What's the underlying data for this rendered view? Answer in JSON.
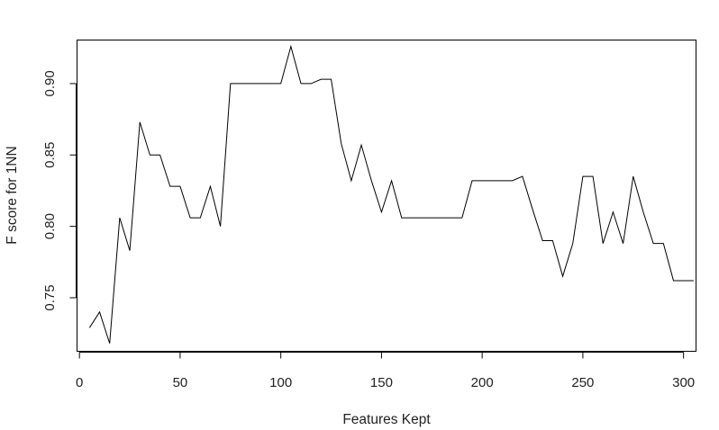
{
  "chart_data": {
    "type": "line",
    "title": "",
    "xlabel": "Features Kept",
    "ylabel": "F score for 1NN",
    "xlim": [
      -1.2,
      306.2
    ],
    "ylim": [
      0.7125,
      0.9305
    ],
    "xticks": [
      0,
      50,
      100,
      150,
      200,
      250,
      300
    ],
    "yticks": [
      0.75,
      0.8,
      0.85,
      0.9
    ],
    "xtick_labels": [
      "0",
      "50",
      "100",
      "150",
      "200",
      "250",
      "300"
    ],
    "ytick_labels": [
      "0.75",
      "0.80",
      "0.85",
      "0.90"
    ],
    "grid": false,
    "line_color": "#000000",
    "series": [
      {
        "x": [
          5,
          10,
          15,
          20,
          25,
          30,
          35,
          40,
          45,
          50,
          55,
          60,
          65,
          70,
          75,
          80,
          85,
          90,
          95,
          100,
          105,
          110,
          115,
          120,
          125,
          130,
          135,
          140,
          145,
          150,
          155,
          160,
          165,
          170,
          175,
          180,
          185,
          190,
          195,
          200,
          205,
          210,
          215,
          220,
          225,
          230,
          235,
          240,
          245,
          250,
          255,
          260,
          265,
          270,
          275,
          280,
          285,
          290,
          295,
          300,
          305
        ],
        "values": [
          0.729,
          0.74,
          0.718,
          0.806,
          0.783,
          0.873,
          0.85,
          0.85,
          0.828,
          0.828,
          0.806,
          0.806,
          0.828,
          0.8,
          0.9,
          0.9,
          0.9,
          0.9,
          0.9,
          0.9,
          0.926,
          0.9,
          0.9,
          0.903,
          0.903,
          0.858,
          0.832,
          0.857,
          0.832,
          0.81,
          0.832,
          0.806,
          0.806,
          0.806,
          0.806,
          0.806,
          0.806,
          0.806,
          0.832,
          0.832,
          0.832,
          0.832,
          0.832,
          0.835,
          0.812,
          0.79,
          0.79,
          0.765,
          0.788,
          0.835,
          0.835,
          0.788,
          0.81,
          0.788,
          0.835,
          0.81,
          0.788,
          0.788,
          0.762,
          0.762,
          0.762
        ]
      }
    ]
  }
}
